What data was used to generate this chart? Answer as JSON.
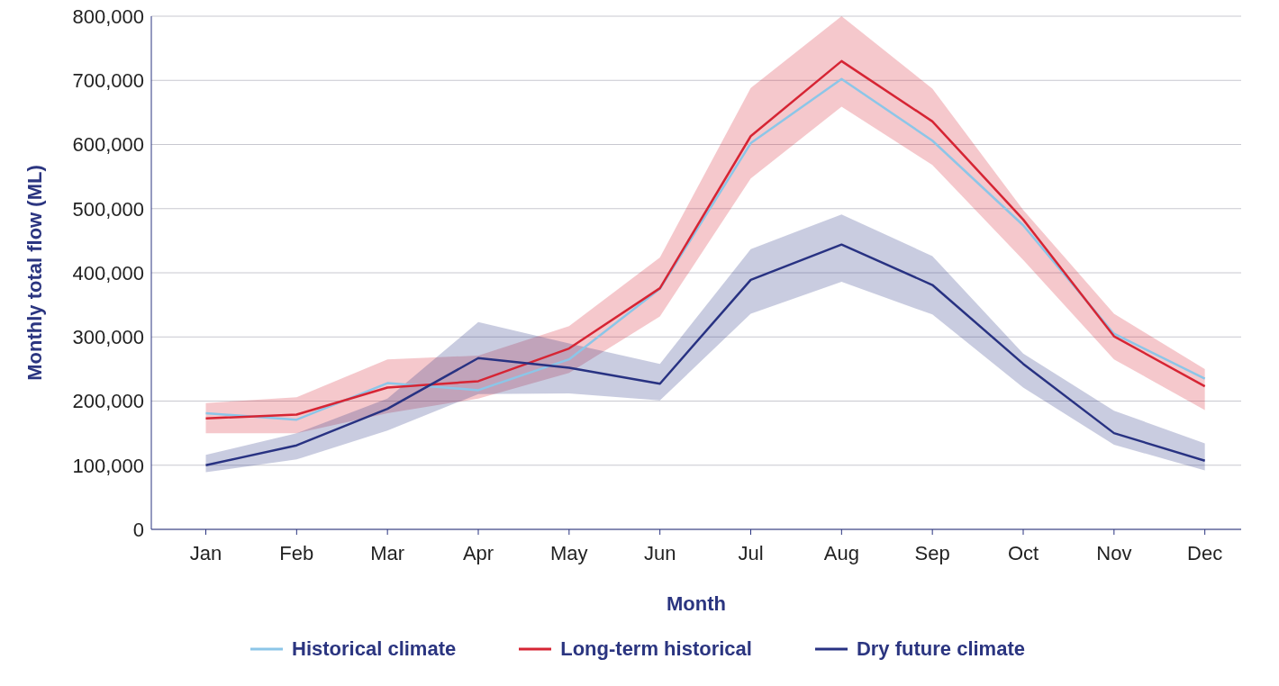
{
  "chart_data": {
    "type": "line",
    "xlabel": "Month",
    "ylabel": "Monthly total flow (ML)",
    "categories": [
      "Jan",
      "Feb",
      "Mar",
      "Apr",
      "May",
      "Jun",
      "Jul",
      "Aug",
      "Sep",
      "Oct",
      "Nov",
      "Dec"
    ],
    "series": [
      {
        "name": "Historical climate",
        "color": "#8cc6e8",
        "values": [
          181000,
          171000,
          228000,
          217000,
          265000,
          375000,
          602000,
          702000,
          606000,
          474000,
          305000,
          235000
        ]
      },
      {
        "name": "Long-term historical",
        "color": "#d62534",
        "values": [
          173000,
          179000,
          221000,
          231000,
          282000,
          376000,
          613000,
          730000,
          636000,
          483000,
          301000,
          223000
        ],
        "lower": [
          150000,
          150000,
          181000,
          204000,
          244000,
          332000,
          547000,
          659000,
          568000,
          420000,
          265000,
          186000
        ],
        "upper": [
          197000,
          206000,
          265000,
          271000,
          317000,
          424000,
          688000,
          800000,
          687000,
          498000,
          336000,
          250000
        ]
      },
      {
        "name": "Dry future climate",
        "color": "#283282",
        "values": [
          100000,
          131000,
          188000,
          267000,
          252000,
          227000,
          389000,
          444000,
          381000,
          258000,
          150000,
          107000
        ],
        "lower": [
          89000,
          109000,
          154000,
          211000,
          212000,
          201000,
          336000,
          386000,
          335000,
          221000,
          132000,
          92000
        ],
        "upper": [
          116000,
          150000,
          204000,
          323000,
          290000,
          258000,
          437000,
          491000,
          426000,
          274000,
          185000,
          134000
        ]
      }
    ],
    "ylim": [
      0,
      800000
    ],
    "yticks": [
      0,
      {
        "value": 100000,
        "label": "100,000"
      },
      {
        "value": 200000,
        "label": "200,000"
      },
      {
        "value": 300000,
        "label": "300,000"
      },
      {
        "value": 400000,
        "label": "400,000"
      },
      {
        "value": 500000,
        "label": "500,000"
      },
      {
        "value": 600000,
        "label": "600,000"
      },
      {
        "value": 700000,
        "label": "700,000"
      },
      {
        "value": 800000,
        "label": "800,000"
      }
    ],
    "grid": "y",
    "legend": "bottom",
    "marker": "none",
    "line_style": "solid"
  }
}
